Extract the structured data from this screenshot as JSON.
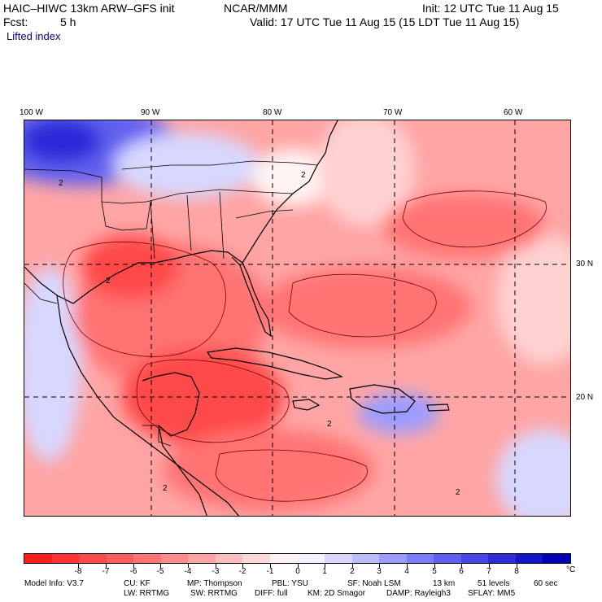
{
  "header": {
    "model_title": "HAIC–HIWC 13km ARW–GFS init",
    "org": "NCAR/MMM",
    "init": "Init: 12 UTC Tue 11 Aug 15",
    "fcst_label": "Fcst:",
    "fcst_value": "5 h",
    "valid": "Valid: 17 UTC Tue 11 Aug 15 (15 LDT Tue 11 Aug 15)",
    "field": "Lifted index"
  },
  "map": {
    "lon_labels": [
      "100 W",
      "90 W",
      "80 W",
      "70 W",
      "60 W"
    ],
    "lat_labels": [
      "30 N",
      "20 N"
    ],
    "contour_label": "2",
    "colors": {
      "deep_red": "#ff4a4a",
      "mid_red": "#ff7373",
      "light_red": "#ffa5a5",
      "pale_red": "#ffd2d2",
      "near_zero": "#fff4f4",
      "pale_blue": "#d8d8ff",
      "light_blue": "#9c9cff",
      "mid_blue": "#6060f0",
      "deep_blue": "#2c2cd8",
      "border": "#000000"
    }
  },
  "colorbar": {
    "unit": "°C",
    "ticks": [
      "-8",
      "-7",
      "-6",
      "-5",
      "-4",
      "-3",
      "-2",
      "-1",
      "0",
      "1",
      "2",
      "3",
      "4",
      "5",
      "6",
      "7",
      "8"
    ],
    "colors": [
      "#ff1c1c",
      "#ff3333",
      "#ff4a4a",
      "#ff5e5e",
      "#ff7373",
      "#ff8a8a",
      "#ffa5a5",
      "#ffbebe",
      "#ffd8d8",
      "#fff2f2",
      "#f2f2ff",
      "#d8d8ff",
      "#bcbcff",
      "#9c9cff",
      "#7c7cff",
      "#6060f0",
      "#4646e8",
      "#2c2cd8",
      "#1414c8",
      "#0000b4"
    ]
  },
  "footer": {
    "line1": [
      "Model Info: V3.7",
      "CU: KF",
      "MP: Thompson",
      "PBL: YSU",
      "SF: Noah LSM",
      "13 km",
      "51 levels",
      "60 sec"
    ],
    "line2": [
      "LW: RRTMG",
      "SW: RRTMG",
      "DIFF: full",
      "KM: 2D Smagor",
      "DAMP: Rayleigh3",
      "SFLAY: MM5"
    ]
  }
}
